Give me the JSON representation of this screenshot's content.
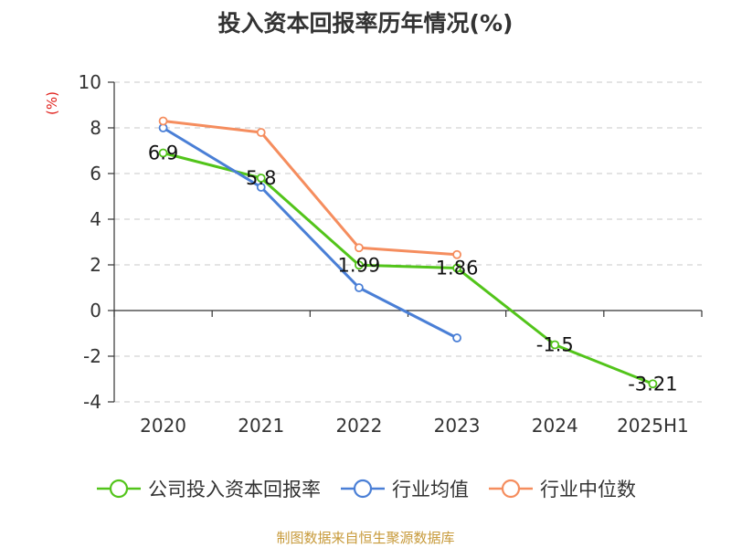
{
  "title": "投入资本回报率历年情况(%)",
  "unit_label": "(%)",
  "source": "制图数据来自恒生聚源数据库",
  "chart_data": {
    "type": "line",
    "categories": [
      "2020",
      "2021",
      "2022",
      "2023",
      "2024",
      "2025H1"
    ],
    "ylim": [
      -4,
      10
    ],
    "yticks": [
      -4,
      -2,
      0,
      2,
      4,
      6,
      8,
      10
    ],
    "grid": true,
    "legend_position": "bottom",
    "series": [
      {
        "name": "公司投入资本回报率",
        "color": "#52c41a",
        "values": [
          6.9,
          5.8,
          1.99,
          1.86,
          -1.5,
          -3.21
        ],
        "labels": [
          "6.9",
          "5.8",
          "1.99",
          "1.86",
          "-1.5",
          "-3.21"
        ]
      },
      {
        "name": "行业均值",
        "color": "#4a7fd6",
        "values": [
          8.0,
          5.4,
          1.0,
          -1.2,
          null,
          null
        ]
      },
      {
        "name": "行业中位数",
        "color": "#f58d5e",
        "values": [
          8.3,
          7.8,
          2.75,
          2.45,
          null,
          null
        ]
      }
    ]
  }
}
